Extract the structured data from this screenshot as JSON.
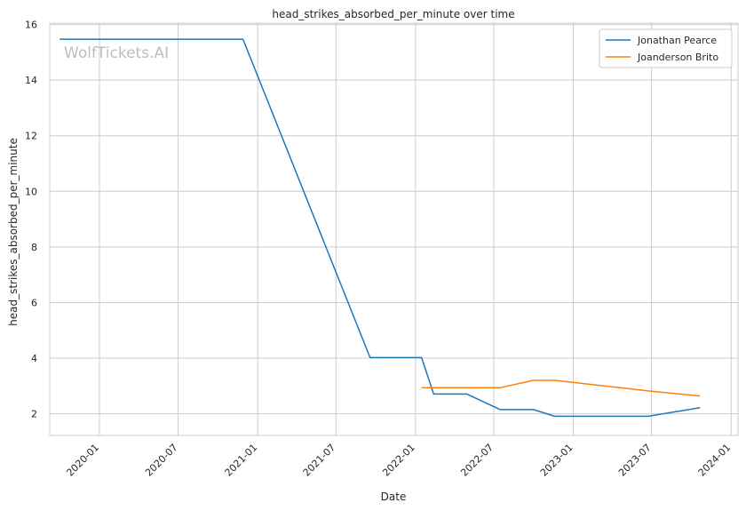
{
  "chart_data": {
    "type": "line",
    "title": "head_strikes_absorbed_per_minute over time",
    "xlabel": "Date",
    "ylabel": "head_strikes_absorbed_per_minute",
    "xlim": [
      "2019-09-08",
      "2024-01-17"
    ],
    "ylim": [
      1.22,
      16.05
    ],
    "xticks": [
      "2020-01",
      "2020-07",
      "2021-01",
      "2021-07",
      "2022-01",
      "2022-07",
      "2023-01",
      "2023-07",
      "2024-01"
    ],
    "yticks": [
      2,
      4,
      6,
      8,
      10,
      12,
      14,
      16
    ],
    "grid": true,
    "legend_position": "top-right",
    "watermark": "WolfTickets.AI",
    "colors": {
      "Jonathan Pearce": "#1f77b4",
      "Joanderson Brito": "#ff7f0e",
      "grid": "#cccccc",
      "axes": "#cccccc"
    },
    "series": [
      {
        "name": "Jonathan Pearce",
        "color": "#1f77b4",
        "points": [
          [
            "2019-10-01",
            15.47
          ],
          [
            "2020-11-28",
            15.47
          ],
          [
            "2021-09-18",
            4.02
          ],
          [
            "2022-01-15",
            4.02
          ],
          [
            "2022-02-12",
            2.71
          ],
          [
            "2022-04-30",
            2.71
          ],
          [
            "2022-07-16",
            2.15
          ],
          [
            "2022-10-01",
            2.15
          ],
          [
            "2022-11-19",
            1.91
          ],
          [
            "2023-06-24",
            1.91
          ],
          [
            "2023-10-21",
            2.22
          ]
        ]
      },
      {
        "name": "Joanderson Brito",
        "color": "#ff7f0e",
        "points": [
          [
            "2022-01-15",
            2.94
          ],
          [
            "2022-07-16",
            2.94
          ],
          [
            "2022-10-01",
            3.2
          ],
          [
            "2022-11-19",
            3.2
          ],
          [
            "2023-06-24",
            2.82
          ],
          [
            "2023-10-21",
            2.64
          ]
        ]
      }
    ]
  }
}
